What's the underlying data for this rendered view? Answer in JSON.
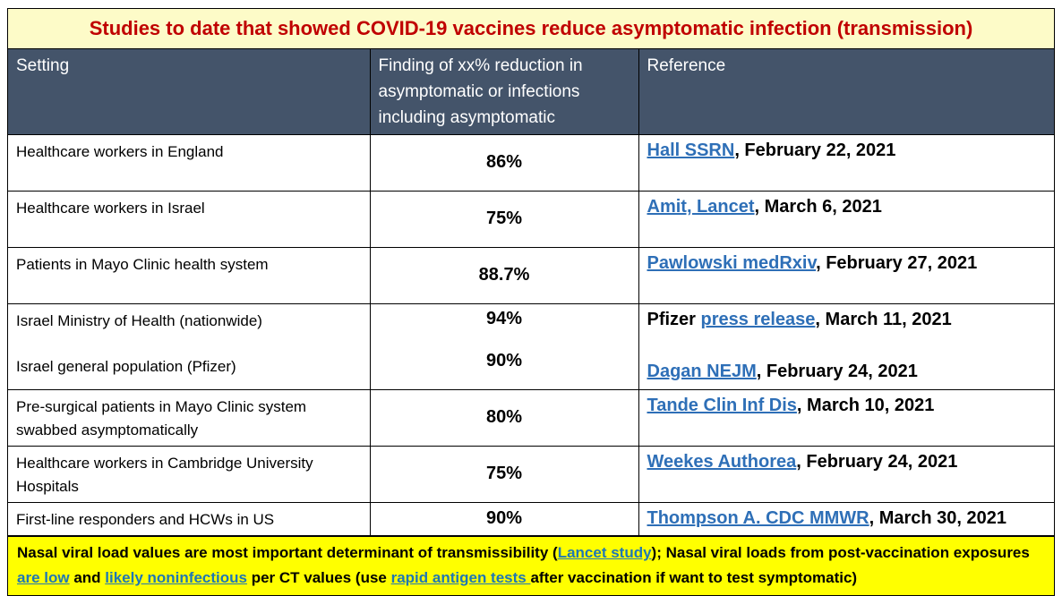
{
  "title": "Studies to date that showed COVID-19 vaccines reduce asymptomatic infection (transmission)",
  "headers": {
    "setting": "Setting",
    "finding": "Finding of xx% reduction in asymptomatic or infections including asymptomatic",
    "reference": "Reference"
  },
  "rows": [
    {
      "setting": "Healthcare workers in England",
      "finding": "86%",
      "ref_prefix": "",
      "ref_link": "Hall SSRN",
      "ref_suffix": ", February 22, 2021"
    },
    {
      "setting": "Healthcare workers in Israel",
      "finding": "75%",
      "ref_prefix": "",
      "ref_link": "Amit, Lancet",
      "ref_suffix": ", March 6, 2021"
    },
    {
      "setting": "Patients in Mayo Clinic health system",
      "finding": "88.7%",
      "ref_prefix": "",
      "ref_link": "Pawlowski medRxiv",
      "ref_suffix": ", February 27, 2021"
    },
    {
      "setting": "Israel Ministry of Health (nationwide)",
      "finding": "94%",
      "ref_prefix": "Pfizer ",
      "ref_link": "press release",
      "ref_suffix": ", March 11, 2021",
      "setting2": "Israel general population (Pfizer)",
      "finding2": "90%",
      "ref_prefix2": "",
      "ref_link2": "Dagan NEJM",
      "ref_suffix2": ", February 24, 2021"
    },
    {
      "setting": "Pre-surgical patients in Mayo Clinic system swabbed asymptomatically",
      "finding": "80%",
      "ref_prefix": "",
      "ref_link": "Tande Clin Inf Dis",
      "ref_suffix": ", March 10, 2021"
    },
    {
      "setting": "Healthcare workers in Cambridge University Hospitals",
      "finding": "75%",
      "ref_prefix": "",
      "ref_link": "Weekes Authorea",
      "ref_suffix": ", February 24, 2021"
    },
    {
      "setting": "First-line responders and HCWs in US",
      "finding": "90%",
      "ref_prefix": "",
      "ref_link": "Thompson A. CDC MMWR",
      "ref_suffix": ", March 30, 2021"
    }
  ],
  "footer": {
    "t1": "Nasal viral load values are most important determinant of transmissibility (",
    "link1": "Lancet study",
    "t2": "); Nasal viral loads from post-vaccination exposures ",
    "link2": "are low",
    "t3": " and ",
    "link3": "likely noninfectious",
    "t4": " per CT values (use ",
    "link4": "rapid antigen tests ",
    "t5": "after vaccination if want to test symptomatic)"
  },
  "colors": {
    "title_bg": "#fdfbc8",
    "title_text": "#c00000",
    "header_bg": "#44546a",
    "link": "#2e6fb7",
    "footer_bg": "#ffff00"
  }
}
